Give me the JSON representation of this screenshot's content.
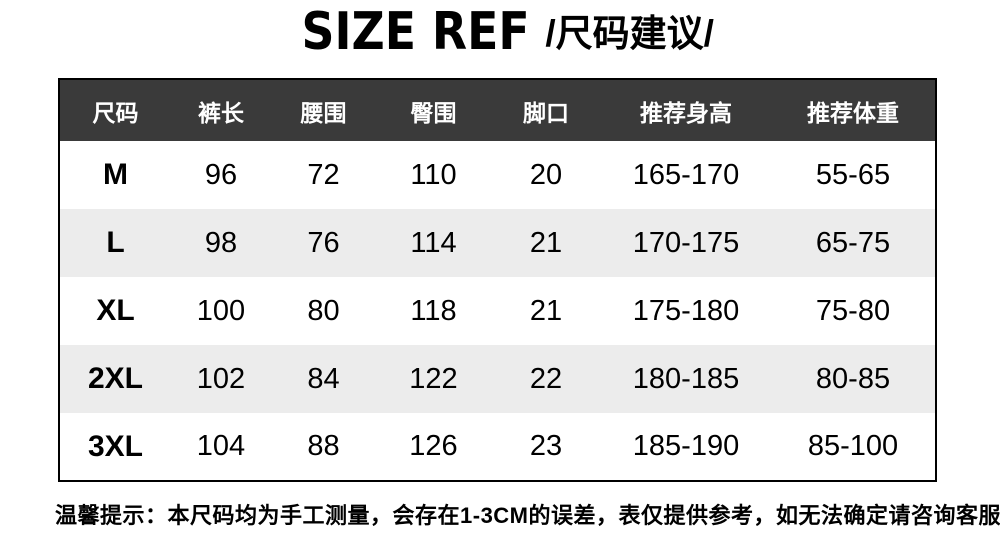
{
  "title": {
    "en": "SIZE REF",
    "zh": "/尺码建议/"
  },
  "note": "温馨提示：本尺码均为手工测量，会存在1-3CM的误差，表仅提供参考，如无法确定请咨询客服。",
  "colors": {
    "header_bg": "#3a3a3a",
    "header_text": "#ffffff",
    "alt_row_bg": "#ececec",
    "row_bg": "#ffffff",
    "border": "#000000",
    "text": "#000000"
  },
  "chart_data": {
    "type": "table",
    "title": "SIZE REF / 尺码建议",
    "columns": [
      "尺码",
      "裤长",
      "腰围",
      "臀围",
      "脚口",
      "推荐身高",
      "推荐体重"
    ],
    "rows": [
      [
        "M",
        "96",
        "72",
        "110",
        "20",
        "165-170",
        "55-65"
      ],
      [
        "L",
        "98",
        "76",
        "114",
        "21",
        "170-175",
        "65-75"
      ],
      [
        "XL",
        "100",
        "80",
        "118",
        "21",
        "175-180",
        "75-80"
      ],
      [
        "2XL",
        "102",
        "84",
        "122",
        "22",
        "180-185",
        "80-85"
      ],
      [
        "3XL",
        "104",
        "88",
        "126",
        "23",
        "185-190",
        "85-100"
      ]
    ]
  }
}
